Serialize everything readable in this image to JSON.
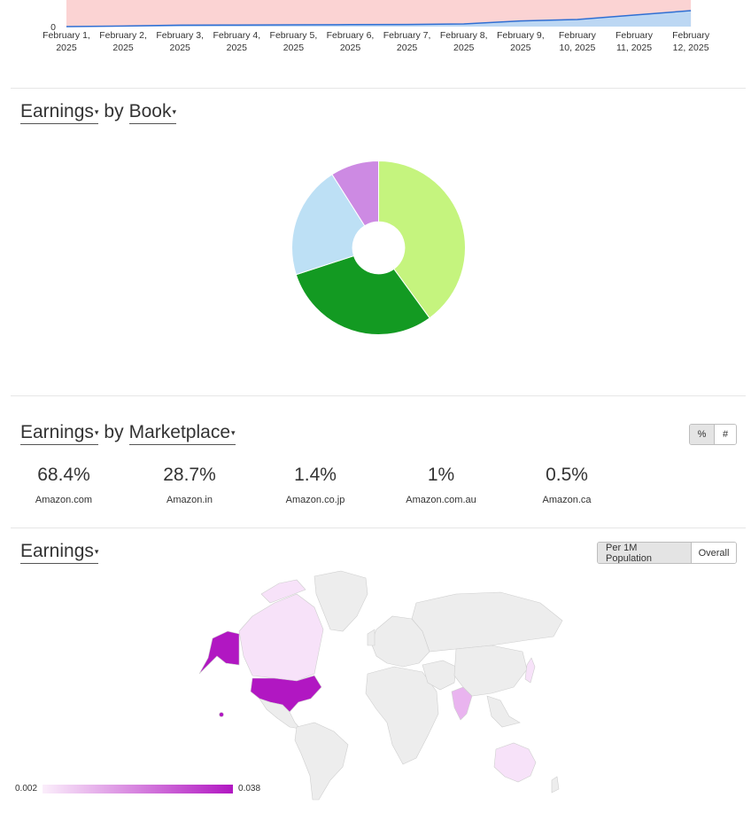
{
  "timeline_chart": {
    "y_tick": "0",
    "dates": [
      "February 1,|2025",
      "February 2,|2025",
      "February 3,|2025",
      "February 4,|2025",
      "February 5,|2025",
      "February 6,|2025",
      "February 7,|2025",
      "February 8,|2025",
      "February 9,|2025",
      "February|10, 2025",
      "February|11, 2025",
      "February|12, 2025"
    ],
    "line_values": [
      0,
      0.3,
      0.8,
      0.9,
      1.0,
      1.1,
      1.2,
      1.5,
      3.2,
      4.0,
      6.5,
      9.0
    ],
    "colors": {
      "area_top": "#fbd3d3",
      "area_bottom": "#bcd7f3",
      "line": "#2f6fd3"
    }
  },
  "book_section": {
    "metric_label": "Earnings",
    "by_label": "by",
    "dimension_label": "Book",
    "chart_data": {
      "type": "pie",
      "values": [
        40,
        30,
        21,
        9
      ],
      "colors": [
        "#c5f47e",
        "#139a22",
        "#bde0f5",
        "#cd8ae3"
      ],
      "hole": 0.3
    }
  },
  "marketplace_section": {
    "metric_label": "Earnings",
    "by_label": "by",
    "dimension_label": "Marketplace",
    "toggle": {
      "percent_label": "%",
      "count_label": "#"
    },
    "items": [
      {
        "pct": "68.4%",
        "name": "Amazon.com"
      },
      {
        "pct": "28.7%",
        "name": "Amazon.in"
      },
      {
        "pct": "1.4%",
        "name": "Amazon.co.jp"
      },
      {
        "pct": "1%",
        "name": "Amazon.com.au"
      },
      {
        "pct": "0.5%",
        "name": "Amazon.ca"
      }
    ]
  },
  "map_section": {
    "metric_label": "Earnings",
    "toggle": {
      "per_pop_label": "Per 1M Population",
      "overall_label": "Overall"
    },
    "legend": {
      "min": "0.002",
      "max": "0.038",
      "color_low": "#fbeefb",
      "color_high": "#b117c2"
    },
    "colors": {
      "none": "#ededed",
      "border": "#cfcfcf",
      "high": "#b117c2",
      "low": "#f7e2f9",
      "mid": "#e9b4ef"
    }
  }
}
